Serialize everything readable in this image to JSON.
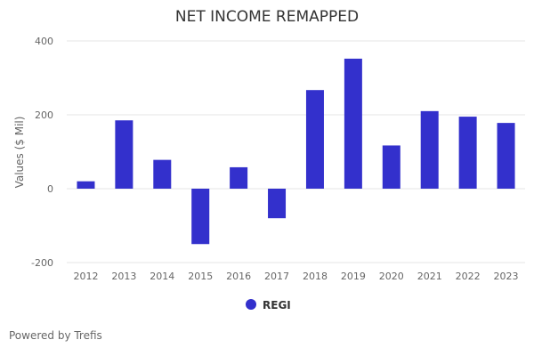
{
  "credit": "Powered by Trefis",
  "colors": {
    "bar": "#3330cc",
    "grid": "#e6e6e6",
    "text": "#666666",
    "title": "#333333"
  },
  "chart_data": {
    "type": "bar",
    "title": "NET INCOME REMAPPED",
    "xlabel": "",
    "ylabel": "Values ($ Mil)",
    "ylim": [
      -200,
      400
    ],
    "yticks": [
      400,
      200,
      0,
      -200
    ],
    "grid": true,
    "legend_position": "bottom-center",
    "categories": [
      "2012",
      "2013",
      "2014",
      "2015",
      "2016",
      "2017",
      "2018",
      "2019",
      "2020",
      "2021",
      "2022",
      "2023"
    ],
    "series": [
      {
        "name": "REGI",
        "values": [
          20,
          185,
          78,
          -150,
          58,
          -80,
          267,
          352,
          117,
          210,
          195,
          178
        ]
      }
    ]
  }
}
